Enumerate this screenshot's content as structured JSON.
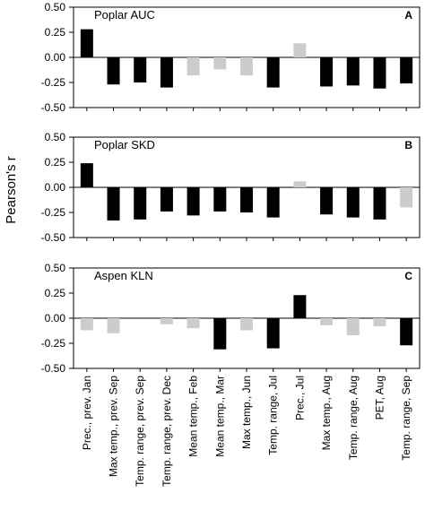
{
  "chart_data": {
    "type": "bar",
    "ylabel": "Pearson's r",
    "ylim": [
      -0.5,
      0.5
    ],
    "yticks": [
      "0.50",
      "0.25",
      "0.00",
      "-0.25",
      "-0.50"
    ],
    "categories": [
      "Prec., prev. Jan",
      "Max temp., prev. Sep",
      "Temp. range, prev. Sep",
      "Temp. range, prev. Dec",
      "Mean temp., Feb",
      "Mean temp., Mar",
      "Max temp., Jun",
      "Temp. range, Jul",
      "Prec., Jul",
      "Max temp., Aug",
      "Temp. range, Aug",
      "PET, Aug",
      "Temp. range, Sep"
    ],
    "colors": {
      "significant": "#000000",
      "nonsignificant": "#cccccc"
    },
    "panels": [
      {
        "title": "Poplar AUC",
        "letter": "A",
        "values": [
          0.28,
          -0.27,
          -0.25,
          -0.3,
          -0.18,
          -0.12,
          -0.18,
          -0.3,
          0.14,
          -0.29,
          -0.28,
          -0.31,
          -0.26
        ],
        "significant": [
          true,
          true,
          true,
          true,
          false,
          false,
          false,
          true,
          false,
          true,
          true,
          true,
          true
        ]
      },
      {
        "title": "Poplar SKD",
        "letter": "B",
        "values": [
          0.24,
          -0.33,
          -0.32,
          -0.24,
          -0.28,
          -0.24,
          -0.25,
          -0.3,
          0.06,
          -0.27,
          -0.3,
          -0.32,
          -0.2
        ],
        "significant": [
          true,
          true,
          true,
          true,
          true,
          true,
          true,
          true,
          false,
          true,
          true,
          true,
          false
        ]
      },
      {
        "title": "Aspen KLN",
        "letter": "C",
        "values": [
          -0.12,
          -0.15,
          0.0,
          -0.06,
          -0.1,
          -0.31,
          -0.12,
          -0.3,
          0.23,
          -0.07,
          -0.17,
          -0.08,
          -0.27
        ],
        "significant": [
          false,
          false,
          false,
          false,
          false,
          true,
          false,
          true,
          true,
          false,
          false,
          false,
          true
        ]
      }
    ]
  }
}
